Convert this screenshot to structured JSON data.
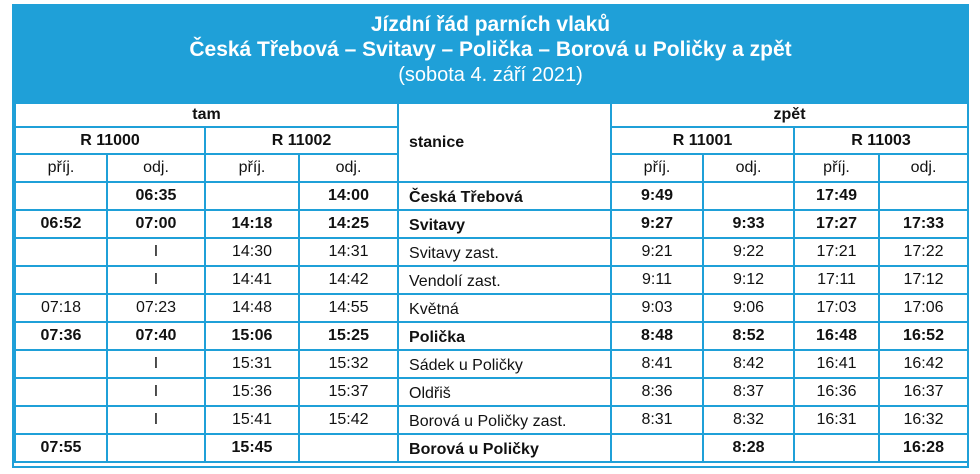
{
  "title": {
    "line1": "Jízdní řád parních vlaků",
    "line2": "Česká Třebová – Svitavy – Polička – Borová u Poličky a zpět",
    "line3": "(sobota 4. září 2021)"
  },
  "headers": {
    "tam": "tam",
    "zpet": "zpět",
    "stanice": "stanice",
    "trains": [
      "R 11000",
      "R 11002",
      "R 11001",
      "R 11003"
    ],
    "arr": "příj.",
    "dep": "odj."
  },
  "rows": [
    {
      "bold": true,
      "station": "Česká Třebová",
      "c": [
        "",
        "06:35",
        "",
        "14:00",
        "9:49",
        "",
        "17:49",
        ""
      ]
    },
    {
      "bold": true,
      "station": "Svitavy",
      "c": [
        "06:52",
        "07:00",
        "14:18",
        "14:25",
        "9:27",
        "9:33",
        "17:27",
        "17:33"
      ]
    },
    {
      "bold": false,
      "station": "Svitavy zast.",
      "c": [
        "",
        "I",
        "14:30",
        "14:31",
        "9:21",
        "9:22",
        "17:21",
        "17:22"
      ]
    },
    {
      "bold": false,
      "station": "Vendolí zast.",
      "c": [
        "",
        "I",
        "14:41",
        "14:42",
        "9:11",
        "9:12",
        "17:11",
        "17:12"
      ]
    },
    {
      "bold": false,
      "station": "Květná",
      "c": [
        "07:18",
        "07:23",
        "14:48",
        "14:55",
        "9:03",
        "9:06",
        "17:03",
        "17:06"
      ]
    },
    {
      "bold": true,
      "station": "Polička",
      "c": [
        "07:36",
        "07:40",
        "15:06",
        "15:25",
        "8:48",
        "8:52",
        "16:48",
        "16:52"
      ]
    },
    {
      "bold": false,
      "station": "Sádek u Poličky",
      "c": [
        "",
        "I",
        "15:31",
        "15:32",
        "8:41",
        "8:42",
        "16:41",
        "16:42"
      ]
    },
    {
      "bold": false,
      "station": "Oldřiš",
      "c": [
        "",
        "I",
        "15:36",
        "15:37",
        "8:36",
        "8:37",
        "16:36",
        "16:37"
      ]
    },
    {
      "bold": false,
      "station": "Borová u Poličky zast.",
      "c": [
        "",
        "I",
        "15:41",
        "15:42",
        "8:31",
        "8:32",
        "16:31",
        "16:32"
      ]
    },
    {
      "bold": true,
      "station": "Borová u Poličky",
      "c": [
        "07:55",
        "",
        "15:45",
        "",
        "",
        "8:28",
        "",
        "16:28"
      ]
    }
  ]
}
